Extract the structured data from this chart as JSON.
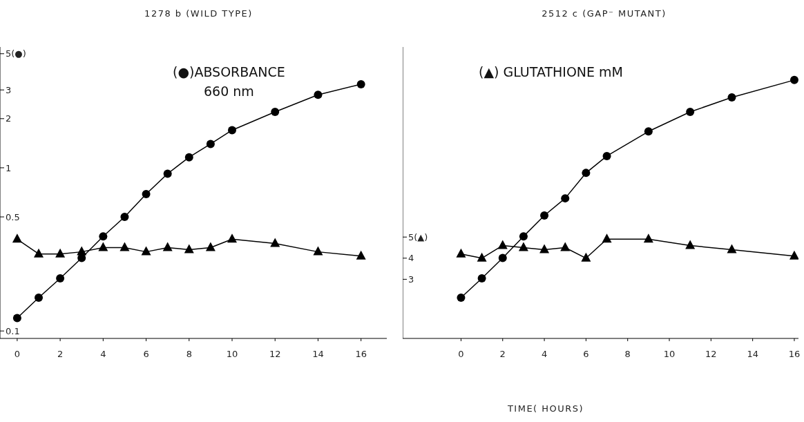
{
  "chart_data": [
    {
      "type": "line",
      "title": "1278 b (WILD TYPE)",
      "annotations": [
        "(●)ABSORBANCE\n660 nm"
      ],
      "log": "y",
      "xlim": [
        -0.8,
        17.2
      ],
      "xticks": [
        0,
        2,
        4,
        6,
        8,
        10,
        12,
        14,
        16
      ],
      "ylim": [
        0.09,
        5.5
      ],
      "yticks": [
        {
          "value": 0.1,
          "label": "0.1"
        },
        {
          "value": 0.5,
          "label": "0.5"
        },
        1,
        2,
        3,
        {
          "value": 5,
          "label": "5(●)"
        }
      ],
      "y2lim": [
        0.2,
        14
      ],
      "series": [
        {
          "marker": "circle",
          "color": "#000000",
          "x": [
            0,
            1,
            2,
            3,
            4,
            5,
            6,
            7,
            8,
            9,
            10,
            12,
            14,
            16
          ],
          "values": [
            0.12,
            0.16,
            0.21,
            0.28,
            0.38,
            0.5,
            0.69,
            0.92,
            1.16,
            1.4,
            1.7,
            2.2,
            2.8,
            3.25
          ]
        },
        {
          "marker": "triangle",
          "axis": "y2",
          "color": "#000000",
          "x": [
            0,
            1,
            2,
            3,
            4,
            5,
            6,
            7,
            8,
            9,
            10,
            12,
            14,
            16
          ],
          "values": [
            4.9,
            4.2,
            4.2,
            4.3,
            4.5,
            4.5,
            4.3,
            4.5,
            4.4,
            4.5,
            4.9,
            4.7,
            4.3,
            4.1
          ]
        }
      ]
    },
    {
      "type": "line",
      "title": "2512 c (GAP⁻ MUTANT)",
      "xlabel": "TIME( HOURS)",
      "y2label": "(▲) GLUTATHIONE  mM",
      "log": "y",
      "xlim": [
        -2.8,
        16.2
      ],
      "xticks": [
        0,
        2,
        4,
        6,
        8,
        10,
        12,
        14,
        16
      ],
      "ylim": [
        0.09,
        5.5
      ],
      "y2lim": [
        0.2,
        14
      ],
      "y2ticks": [
        3,
        4,
        {
          "value": 5,
          "label": "5(▲)"
        }
      ],
      "series": [
        {
          "marker": "circle",
          "color": "#000000",
          "x": [
            0,
            1,
            2,
            3,
            4,
            5,
            6,
            7,
            9,
            11,
            13,
            16
          ],
          "values": [
            0.16,
            0.21,
            0.28,
            0.38,
            0.51,
            0.65,
            0.93,
            1.18,
            1.67,
            2.2,
            2.7,
            3.45
          ]
        },
        {
          "marker": "triangle",
          "axis": "y2",
          "color": "#000000",
          "x": [
            0,
            1,
            2,
            3,
            4,
            5,
            6,
            7,
            9,
            11,
            13,
            16
          ],
          "values": [
            4.2,
            4.0,
            4.6,
            4.5,
            4.4,
            4.5,
            4.0,
            4.9,
            4.9,
            4.6,
            4.4,
            4.1
          ]
        }
      ]
    }
  ]
}
